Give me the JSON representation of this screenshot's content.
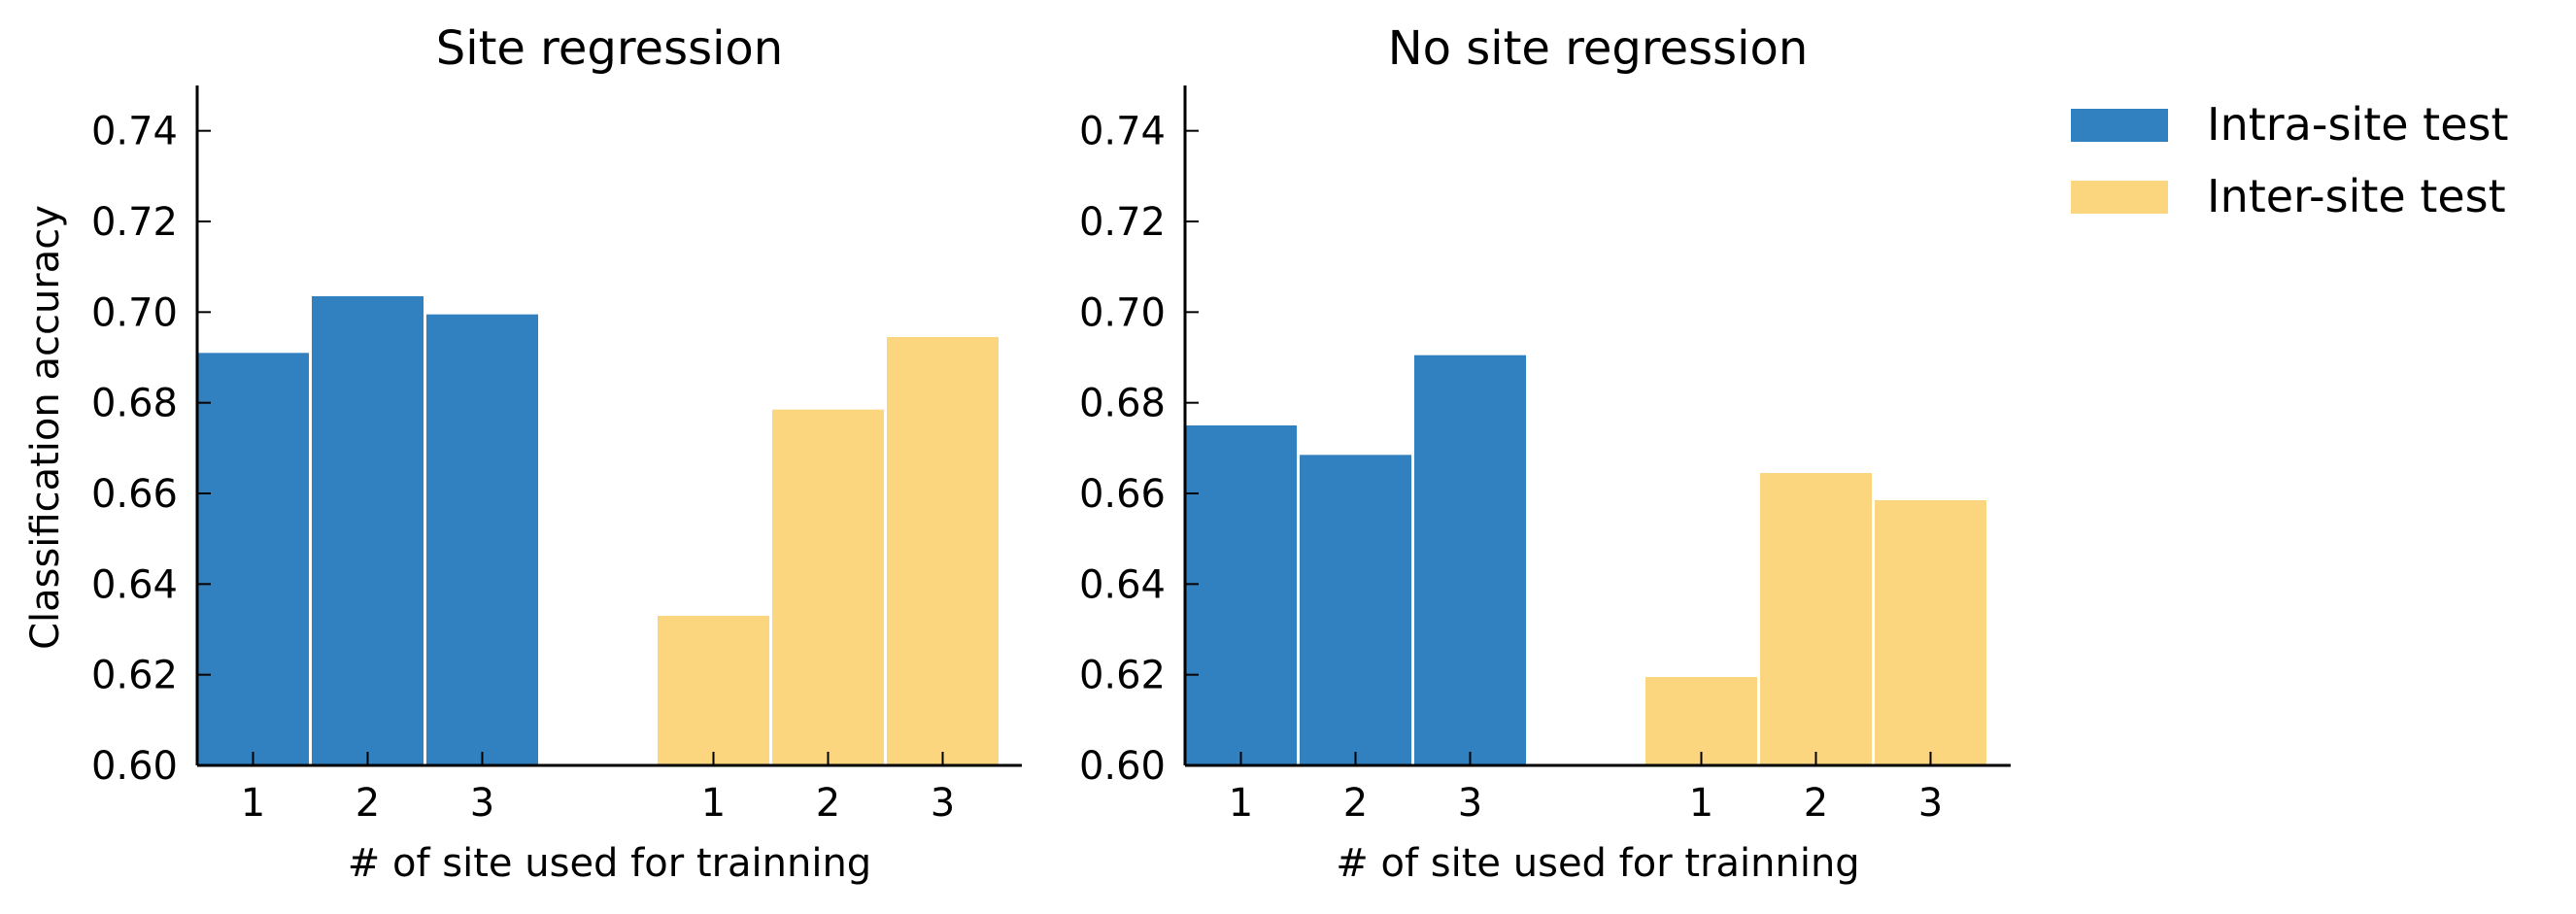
{
  "figure": {
    "ylabel": "Classification accuracy"
  },
  "legend": {
    "placement": "top-right",
    "items": [
      {
        "label": "Intra-site test",
        "color": "#3180c0"
      },
      {
        "label": "Inter-site test",
        "color": "#fcd57f"
      }
    ]
  },
  "chart_data": [
    {
      "type": "bar",
      "title": "Site regression",
      "xlabel": "# of site used for trainning",
      "ylabel": "Classification accuracy",
      "ylim": [
        0.6,
        0.75
      ],
      "yticks": [
        0.6,
        0.62,
        0.64,
        0.66,
        0.68,
        0.7,
        0.72,
        0.74
      ],
      "grid": false,
      "categories": [
        "1",
        "2",
        "3"
      ],
      "series": [
        {
          "name": "Intra-site test",
          "color": "#3180c0",
          "values": [
            0.691,
            0.7035,
            0.6995
          ]
        },
        {
          "name": "Inter-site test",
          "color": "#fcd57f",
          "values": [
            0.633,
            0.6785,
            0.6945
          ]
        }
      ]
    },
    {
      "type": "bar",
      "title": "No site regression",
      "xlabel": "# of site used for trainning",
      "ylabel": "",
      "ylim": [
        0.6,
        0.75
      ],
      "yticks": [
        0.6,
        0.62,
        0.64,
        0.66,
        0.68,
        0.7,
        0.72,
        0.74
      ],
      "grid": false,
      "categories": [
        "1",
        "2",
        "3"
      ],
      "series": [
        {
          "name": "Intra-site test",
          "color": "#3180c0",
          "values": [
            0.675,
            0.6685,
            0.6905
          ]
        },
        {
          "name": "Inter-site test",
          "color": "#fcd57f",
          "values": [
            0.6195,
            0.6645,
            0.6585
          ]
        }
      ]
    }
  ]
}
